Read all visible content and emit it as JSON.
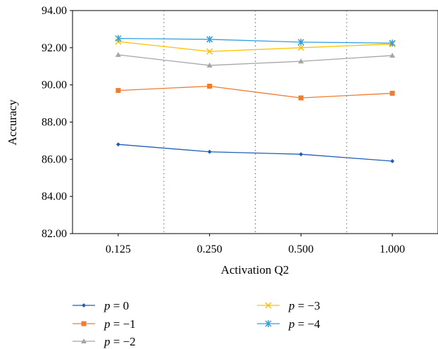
{
  "chart_data": {
    "type": "line",
    "categories": [
      "0.125",
      "0.250",
      "0.500",
      "1.000"
    ],
    "xlabel": "Activation Q2",
    "ylabel": "Accuracy",
    "ylim": [
      82.0,
      94.0
    ],
    "yticks": [
      "82.00",
      "84.00",
      "86.00",
      "88.00",
      "90.00",
      "92.00",
      "94.00"
    ],
    "grid": "dotted vertical separators between categories",
    "legend_position": "below plot, two columns",
    "series": [
      {
        "name": "p = 0",
        "var": "p",
        "rel": "= 0",
        "color": "#1f5fb5",
        "marker": "diamond",
        "values": [
          86.8,
          86.4,
          86.27,
          85.9
        ]
      },
      {
        "name": "p = −1",
        "var": "p",
        "rel": "= −1",
        "color": "#ed7d31",
        "marker": "square",
        "values": [
          89.7,
          89.93,
          89.3,
          89.55
        ]
      },
      {
        "name": "p = −2",
        "var": "p",
        "rel": "= −2",
        "color": "#a5a5a5",
        "marker": "triangle",
        "values": [
          91.62,
          91.05,
          91.27,
          91.58
        ]
      },
      {
        "name": "p = −3",
        "var": "p",
        "rel": "= −3",
        "color": "#ffc000",
        "marker": "x",
        "values": [
          92.33,
          91.8,
          92.0,
          92.2
        ]
      },
      {
        "name": "p = −4",
        "var": "p",
        "rel": "= −4",
        "color": "#2e9fe0",
        "marker": "star",
        "values": [
          92.5,
          92.45,
          92.3,
          92.25
        ]
      }
    ]
  }
}
